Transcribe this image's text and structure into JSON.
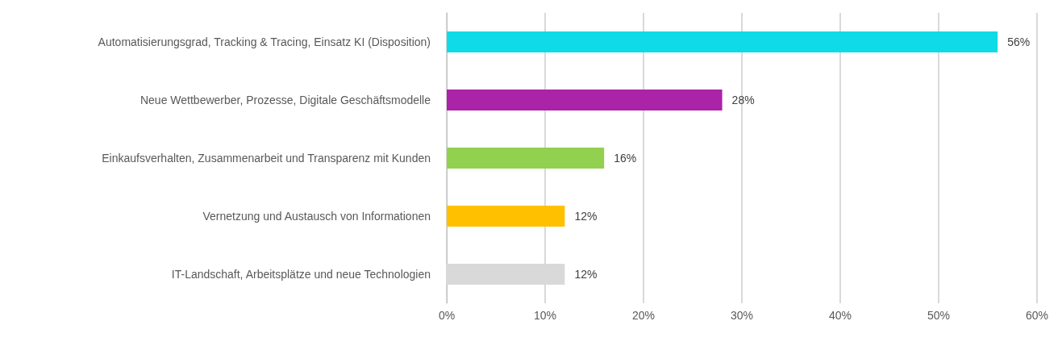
{
  "chart_data": {
    "type": "bar",
    "orientation": "horizontal",
    "categories": [
      "Automatisierungsgrad, Tracking & Tracing, Einsatz KI (Disposition)",
      "Neue Wettbewerber, Prozesse, Digitale Geschäftsmodelle",
      "Einkaufsverhalten, Zusammenarbeit und Transparenz mit Kunden",
      "Vernetzung und Austausch von Informationen",
      "IT-Landschaft, Arbeitsplätze und neue Technologien"
    ],
    "values": [
      56,
      28,
      16,
      12,
      12
    ],
    "value_labels": [
      "56%",
      "28%",
      "16%",
      "12%",
      "12%"
    ],
    "colors": [
      "#0fdbe6",
      "#ab23a6",
      "#92d050",
      "#ffc000",
      "#d9d9d9"
    ],
    "xlim": [
      0,
      60
    ],
    "xticks": [
      {
        "value": 0,
        "label": "0%"
      },
      {
        "value": 10,
        "label": "10%"
      },
      {
        "value": 20,
        "label": "20%"
      },
      {
        "value": 30,
        "label": "30%"
      },
      {
        "value": 40,
        "label": "40%"
      },
      {
        "value": 50,
        "label": "50%"
      },
      {
        "value": 60,
        "label": "60%"
      }
    ],
    "grid": "x"
  }
}
